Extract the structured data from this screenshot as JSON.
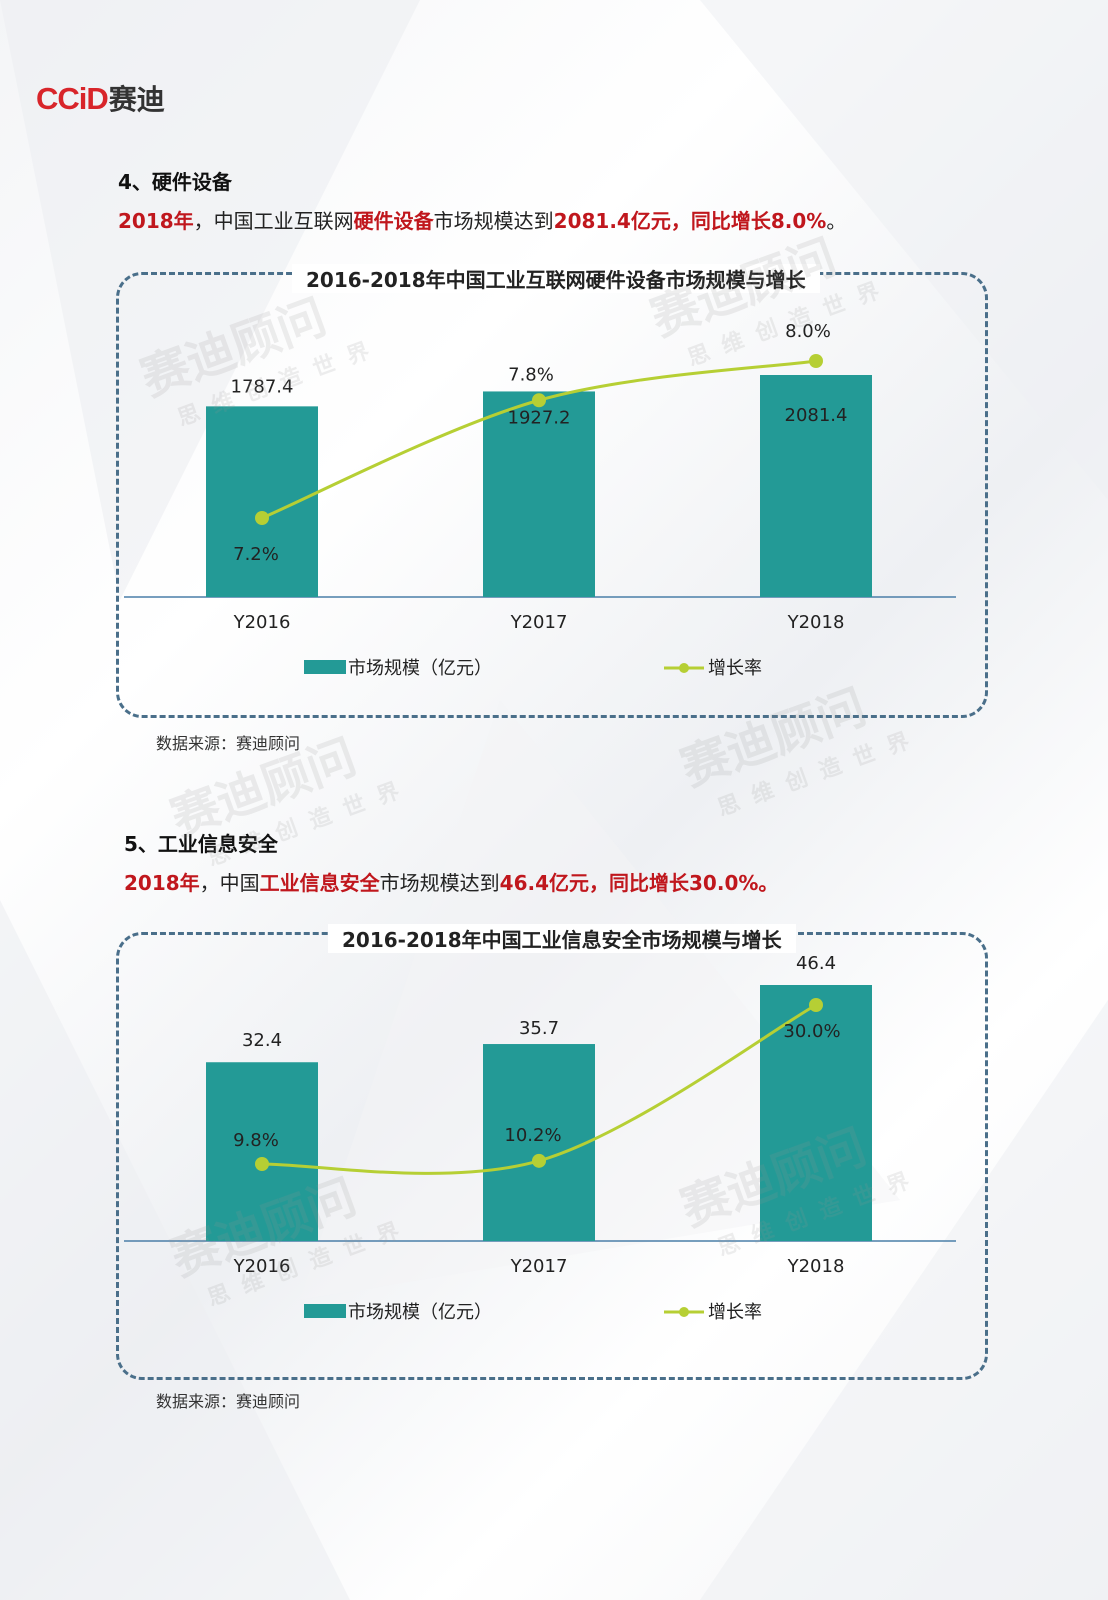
{
  "logo": {
    "en": "CCiD",
    "cn": "赛迪"
  },
  "section4": {
    "heading": "4、硬件设备",
    "lead": [
      {
        "text": "2018年",
        "red": true
      },
      {
        "text": "，中国工业互联网",
        "red": false
      },
      {
        "text": "硬件设备",
        "red": true
      },
      {
        "text": "市场规模达到",
        "red": false
      },
      {
        "text": "2081.4亿元，同比增长8.0%",
        "red": true
      },
      {
        "text": "。",
        "red": false
      }
    ],
    "source": "数据来源：赛迪顾问"
  },
  "section5": {
    "heading": "5、工业信息安全",
    "lead": [
      {
        "text": "2018年",
        "red": true
      },
      {
        "text": "，中国",
        "red": false
      },
      {
        "text": "工业信息安全",
        "red": true
      },
      {
        "text": "市场规模达到",
        "red": false
      },
      {
        "text": "46.4亿元，同比增长30.0%。",
        "red": true
      }
    ],
    "source": "数据来源：赛迪顾问"
  },
  "watermark": {
    "big": "赛迪顾问",
    "small": "思维创造世界"
  },
  "colors": {
    "bar": "#239a96",
    "line": "#b6cf34",
    "accent_red": "#c0171d",
    "box": "#4a6f8a"
  },
  "chart_data": [
    {
      "type": "bar",
      "title": "2016-2018年中国工业互联网硬件设备市场规模与增长",
      "categories": [
        "Y2016",
        "Y2017",
        "Y2018"
      ],
      "series": [
        {
          "name": "市场规模（亿元）",
          "type": "bar",
          "values": [
            1787.4,
            1927.2,
            2081.4
          ],
          "labels": [
            "1787.4",
            "1927.2",
            "2081.4"
          ]
        },
        {
          "name": "增长率",
          "type": "line",
          "values": [
            7.2,
            7.8,
            8.0
          ],
          "labels": [
            "7.2%",
            "7.8%",
            "8.0%"
          ]
        }
      ],
      "legend": "bottom"
    },
    {
      "type": "bar",
      "title": "2016-2018年中国工业信息安全市场规模与增长",
      "categories": [
        "Y2016",
        "Y2017",
        "Y2018"
      ],
      "series": [
        {
          "name": "市场规模（亿元）",
          "type": "bar",
          "values": [
            32.4,
            35.7,
            46.4
          ],
          "labels": [
            "32.4",
            "35.7",
            "46.4"
          ]
        },
        {
          "name": "增长率",
          "type": "line",
          "values": [
            9.8,
            10.2,
            30.0
          ],
          "labels": [
            "9.8%",
            "10.2%",
            "30.0%"
          ]
        }
      ],
      "legend": "bottom"
    }
  ]
}
